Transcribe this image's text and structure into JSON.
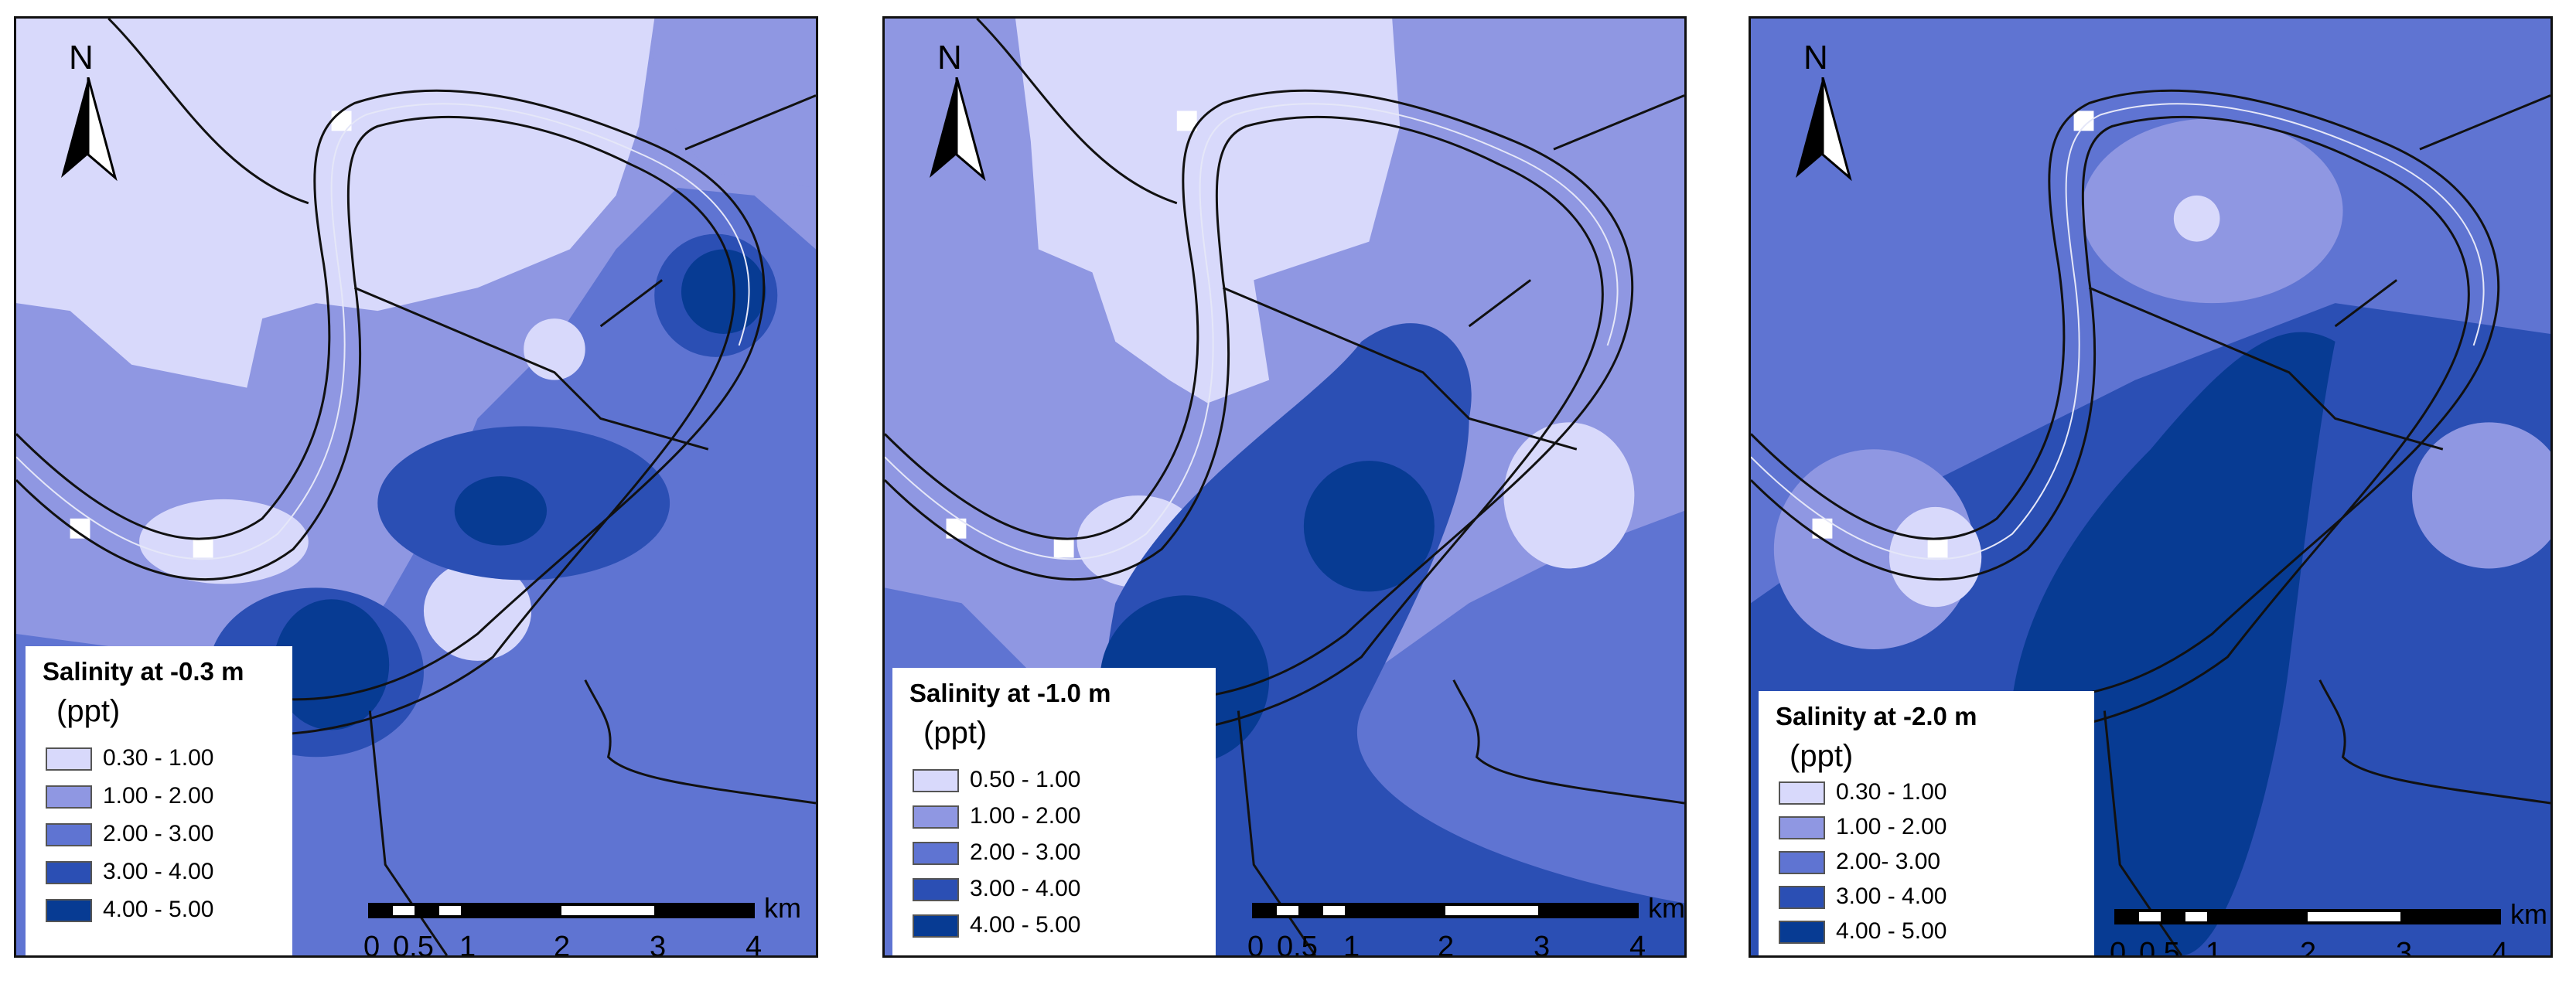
{
  "north_label": "N",
  "scale_ticks": [
    "0",
    "0.5",
    "1",
    "2",
    "3",
    "4"
  ],
  "scale_unit": "km",
  "colors": {
    "c1": "#d8d9fb",
    "c2": "#8f97e2",
    "c3": "#5f74d2",
    "c4": "#2b4fb4",
    "c5": "#073b93",
    "line": "#111111"
  },
  "panels": [
    {
      "legend_title": "Salinity at -0.3 m",
      "legend_unit": "(ppt)",
      "classes": [
        "0.30 - 1.00",
        "1.00 - 2.00",
        "2.00 - 3.00",
        "3.00 - 4.00",
        "4.00 - 5.00"
      ]
    },
    {
      "legend_title": "Salinity at -1.0 m",
      "legend_unit": "(ppt)",
      "classes": [
        "0.50 - 1.00",
        "1.00 - 2.00",
        "2.00 - 3.00",
        "3.00 - 4.00",
        "4.00 - 5.00"
      ]
    },
    {
      "legend_title": "Salinity at -2.0 m",
      "legend_unit": "(ppt)",
      "classes": [
        "0.30 - 1.00",
        "1.00 - 2.00",
        "2.00- 3.00",
        "3.00 - 4.00",
        "4.00 - 5.00"
      ]
    }
  ]
}
